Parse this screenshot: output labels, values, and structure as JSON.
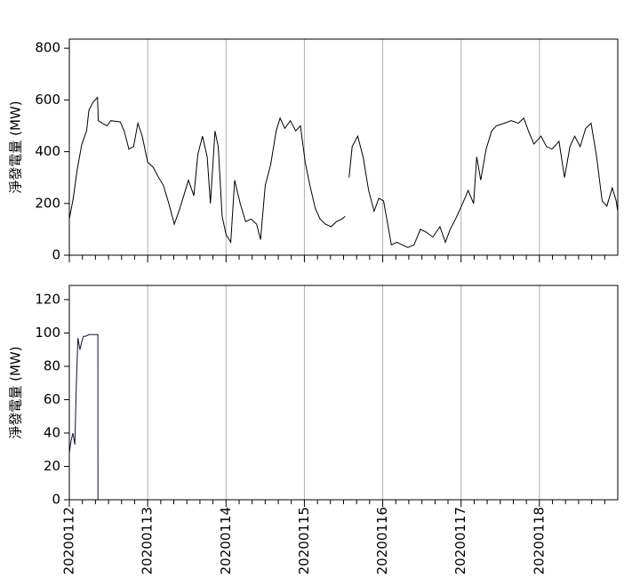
{
  "chart_data": [
    {
      "type": "line",
      "ylabel": "淨發電量 (MW)",
      "xlim": [
        20200112,
        20200119
      ],
      "ylim": [
        0,
        835
      ],
      "xticks": [
        20200112,
        20200113,
        20200114,
        20200115,
        20200116,
        20200117,
        20200118
      ],
      "xminorticks": [
        20200112.167,
        20200112.333,
        20200112.5,
        20200112.667,
        20200112.833,
        20200113.167,
        20200113.333,
        20200113.5,
        20200113.667,
        20200113.833,
        20200114.167,
        20200114.333,
        20200114.5,
        20200114.667,
        20200114.833,
        20200115.167,
        20200115.333,
        20200115.5,
        20200115.667,
        20200115.833,
        20200116.167,
        20200116.333,
        20200116.5,
        20200116.667,
        20200116.833,
        20200117.167,
        20200117.333,
        20200117.5,
        20200117.667,
        20200117.833,
        20200118.167,
        20200118.333,
        20200118.5,
        20200118.667,
        20200118.833
      ],
      "yticks": [
        0,
        200,
        400,
        600,
        800
      ],
      "grid": true,
      "series": [
        {
          "color": "#000000",
          "x": [
            20200112.0,
            20200112.05,
            20200112.1,
            20200112.16,
            20200112.22,
            20200112.25,
            20200112.3,
            20200112.36,
            20200112.37,
            20200112.42,
            20200112.48,
            20200112.53,
            20200112.65,
            20200112.7,
            20200112.76,
            20200112.82,
            20200112.875,
            20200112.93,
            20200113.0,
            20200113.07,
            20200113.14,
            20200113.2,
            20200113.27,
            20200113.34,
            20200113.41,
            20200113.48,
            20200113.52,
            20200113.59,
            20200113.64,
            20200113.7,
            20200113.76,
            20200113.8,
            20200113.86,
            20200113.9,
            20200113.95,
            20200114.0,
            20200114.06,
            20200114.11,
            20200114.18,
            20200114.25,
            20200114.32,
            20200114.39,
            20200114.44,
            20200114.5,
            20200114.57,
            20200114.64,
            20200114.69,
            20200114.75,
            20200114.82,
            20200114.89,
            20200114.95,
            20200115.01,
            20200115.07,
            20200115.14,
            20200115.2,
            20200115.27,
            20200115.34,
            20200115.41,
            20200115.48,
            20200115.52,
            20200115.55,
            20200115.57,
            20200115.61,
            20200115.68,
            20200115.75,
            20200115.82,
            20200115.89,
            20200115.95,
            20200116.01,
            20200116.07,
            20200116.11,
            20200116.18,
            20200116.25,
            20200116.32,
            20200116.4,
            20200116.48,
            20200116.55,
            20200116.64,
            20200116.73,
            20200116.8,
            20200116.86,
            20200116.93,
            20200117.02,
            20200117.09,
            20200117.16,
            20200117.2,
            20200117.25,
            20200117.32,
            20200117.39,
            20200117.45,
            20200117.55,
            20200117.64,
            20200117.73,
            20200117.8,
            20200117.86,
            20200117.93,
            20200118.02,
            20200118.09,
            20200118.16,
            20200118.25,
            20200118.32,
            20200118.39,
            20200118.45,
            20200118.52,
            20200118.59,
            20200118.66,
            20200118.73,
            20200118.8,
            20200118.86,
            20200118.93,
            20200118.98,
            20200119.0
          ],
          "values": [
            140,
            220,
            330,
            430,
            480,
            560,
            590,
            610,
            520,
            510,
            500,
            520,
            515,
            480,
            410,
            420,
            510,
            460,
            360,
            340,
            300,
            270,
            200,
            120,
            180,
            250,
            290,
            230,
            390,
            460,
            380,
            200,
            480,
            420,
            150,
            80,
            50,
            290,
            200,
            130,
            140,
            120,
            60,
            270,
            350,
            480,
            530,
            490,
            520,
            480,
            500,
            360,
            270,
            180,
            140,
            120,
            110,
            130,
            140,
            150,
            null,
            300,
            420,
            460,
            380,
            250,
            170,
            220,
            210,
            110,
            40,
            50,
            40,
            30,
            40,
            100,
            90,
            70,
            110,
            50,
            100,
            140,
            200,
            250,
            200,
            380,
            290,
            410,
            480,
            500,
            510,
            520,
            510,
            530,
            480,
            430,
            460,
            420,
            410,
            440,
            300,
            420,
            460,
            420,
            490,
            510,
            380,
            210,
            190,
            260,
            210,
            170
          ]
        }
      ]
    },
    {
      "type": "line",
      "ylabel": "淨發電量 (MW)",
      "xlim": [
        20200112,
        20200119
      ],
      "ylim": [
        0,
        128.5
      ],
      "xticks": [
        20200112,
        20200113,
        20200114,
        20200115,
        20200116,
        20200117,
        20200118
      ],
      "xminorticks": [
        20200112.167,
        20200112.333,
        20200112.5,
        20200112.667,
        20200112.833,
        20200113.167,
        20200113.333,
        20200113.5,
        20200113.667,
        20200113.833,
        20200114.167,
        20200114.333,
        20200114.5,
        20200114.667,
        20200114.833,
        20200115.167,
        20200115.333,
        20200115.5,
        20200115.667,
        20200115.833,
        20200116.167,
        20200116.333,
        20200116.5,
        20200116.667,
        20200116.833,
        20200117.167,
        20200117.333,
        20200117.5,
        20200117.667,
        20200117.833,
        20200118.167,
        20200118.333,
        20200118.5,
        20200118.667,
        20200118.833
      ],
      "yticks": [
        0,
        20,
        40,
        60,
        80,
        100,
        120
      ],
      "grid": true,
      "series": [
        {
          "color": "#101040",
          "x": [
            20200112.0,
            20200112.02,
            20200112.045,
            20200112.07,
            20200112.09,
            20200112.11,
            20200112.135,
            20200112.16,
            20200112.18,
            20200112.205,
            20200112.25,
            20200112.32,
            20200112.364,
            20200112.365,
            20200119.0
          ],
          "values": [
            28,
            35,
            40,
            33,
            70,
            97,
            90,
            95,
            98,
            98,
            99,
            99,
            99,
            0,
            0
          ]
        }
      ]
    }
  ]
}
